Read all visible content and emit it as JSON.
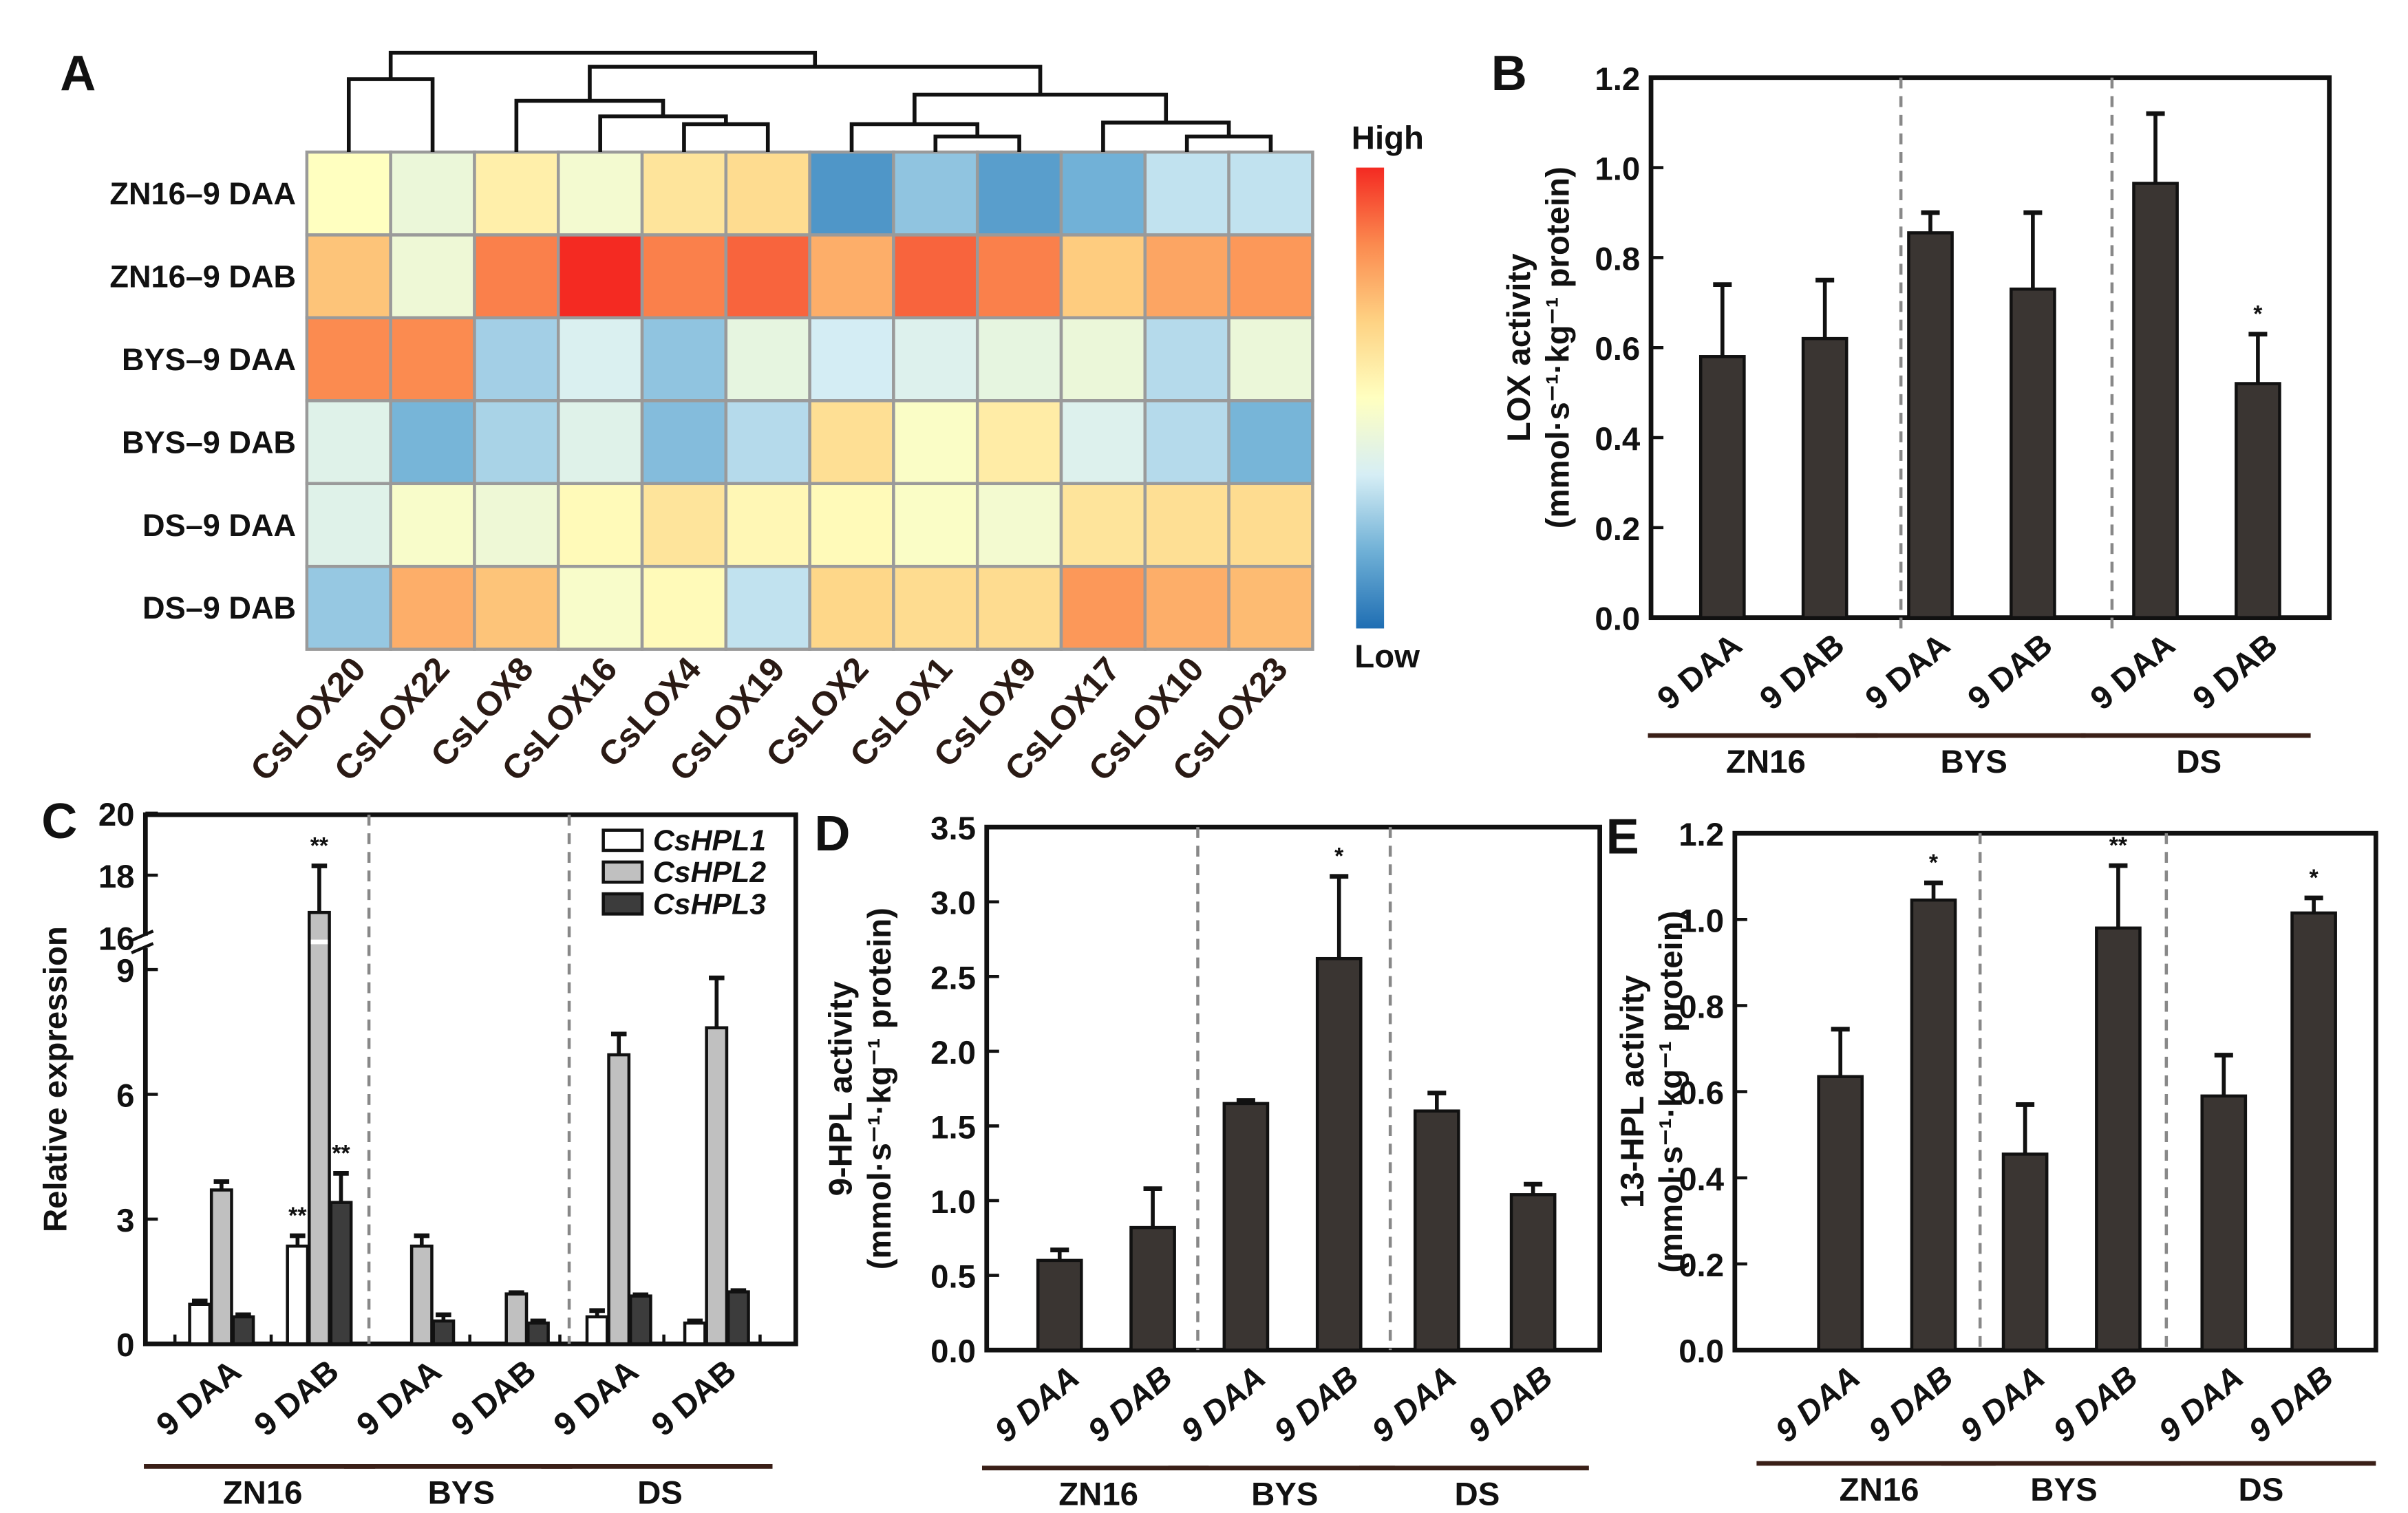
{
  "chart_data": [
    {
      "panel": "A",
      "type": "heatmap",
      "rows": [
        "ZN16–9 DAA",
        "ZN16–9 DAB",
        "BYS–9 DAA",
        "BYS–9 DAB",
        "DS–9 DAA",
        "DS–9 DAB"
      ],
      "columns": [
        "CsLOX20",
        "CsLOX22",
        "CsLOX8",
        "CsLOX16",
        "CsLOX4",
        "CsLOX19",
        "CsLOX2",
        "CsLOX1",
        "CsLOX9",
        "CsLOX17",
        "CsLOX10",
        "CsLOX23"
      ],
      "values": [
        [
          0.5,
          0.42,
          0.56,
          0.45,
          0.6,
          0.63,
          0.1,
          0.22,
          0.12,
          0.17,
          0.3,
          0.3
        ],
        [
          0.7,
          0.43,
          0.85,
          1.0,
          0.85,
          0.9,
          0.75,
          0.9,
          0.85,
          0.68,
          0.77,
          0.8
        ],
        [
          0.83,
          0.83,
          0.25,
          0.35,
          0.22,
          0.4,
          0.33,
          0.36,
          0.4,
          0.42,
          0.28,
          0.42
        ],
        [
          0.37,
          0.18,
          0.26,
          0.37,
          0.2,
          0.28,
          0.62,
          0.48,
          0.57,
          0.36,
          0.28,
          0.18
        ],
        [
          0.37,
          0.47,
          0.43,
          0.52,
          0.6,
          0.53,
          0.52,
          0.48,
          0.45,
          0.6,
          0.62,
          0.63
        ],
        [
          0.23,
          0.75,
          0.7,
          0.47,
          0.52,
          0.3,
          0.65,
          0.63,
          0.63,
          0.8,
          0.75,
          0.72
        ]
      ],
      "value_range": [
        0,
        1
      ],
      "colorscale": [
        "#1f6eb3",
        "#6fb0d6",
        "#d6eef5",
        "#ffffc0",
        "#fed283",
        "#fb8a4f",
        "#f42a22"
      ],
      "legend": {
        "high": "High",
        "low": "Low"
      },
      "column_dendrogram": true
    },
    {
      "panel": "B",
      "type": "bar",
      "categories": [
        "9 DAA",
        "9 DAB",
        "9 DAA",
        "9 DAB",
        "9 DAA",
        "9 DAB"
      ],
      "groups": [
        "ZN16",
        "BYS",
        "DS"
      ],
      "values": [
        0.58,
        0.62,
        0.855,
        0.73,
        0.965,
        0.52
      ],
      "errors": [
        0.16,
        0.13,
        0.045,
        0.17,
        0.155,
        0.11
      ],
      "significance": [
        "",
        "",
        "",
        "",
        "",
        "*"
      ],
      "ylabel": "LOX activity",
      "ylabel_units": "(mmol·s⁻¹·kg⁻¹ protein)",
      "ylim": [
        0,
        1.2
      ],
      "yticks": [
        "0.0",
        "0.2",
        "0.4",
        "0.6",
        "0.8",
        "1.0",
        "1.2"
      ]
    },
    {
      "panel": "C",
      "type": "bar",
      "categories": [
        "9 DAA",
        "9 DAB",
        "9 DAA",
        "9 DAB",
        "9 DAA",
        "9 DAB"
      ],
      "groups": [
        "ZN16",
        "BYS",
        "DS"
      ],
      "series": [
        {
          "name": "CsHPL1",
          "color": "#ffffff",
          "values": [
            0.95,
            2.35,
            0,
            0,
            0.65,
            0.5
          ],
          "errors": [
            0.08,
            0.25,
            0,
            0,
            0.15,
            0.05
          ],
          "significance": [
            "",
            "**",
            "",
            "",
            "",
            ""
          ]
        },
        {
          "name": "CsHPL2",
          "color": "#c0c0c0",
          "values": [
            3.7,
            16.8,
            2.35,
            1.2,
            6.95,
            7.6
          ],
          "errors": [
            0.2,
            1.5,
            0.25,
            0.03,
            0.5,
            1.2
          ],
          "significance": [
            "",
            "**",
            "",
            "",
            "",
            ""
          ]
        },
        {
          "name": "CsHPL3",
          "color": "#3c3c3c",
          "values": [
            0.65,
            3.4,
            0.55,
            0.5,
            1.15,
            1.25
          ],
          "errors": [
            0.05,
            0.7,
            0.15,
            0.05,
            0.03,
            0.03
          ],
          "significance": [
            "",
            "**",
            "",
            "",
            "",
            ""
          ]
        }
      ],
      "ylabel": "Relative expression",
      "ylim": [
        0,
        20
      ],
      "axis_break": [
        9,
        16
      ],
      "yticks": [
        "0",
        "3",
        "6",
        "9",
        "16",
        "18",
        "20"
      ],
      "legend_position": "top-right"
    },
    {
      "panel": "D",
      "type": "bar",
      "categories": [
        "9 DAA",
        "9 DAB",
        "9 DAA",
        "9 DAB",
        "9 DAA",
        "9 DAB"
      ],
      "groups": [
        "ZN16",
        "BYS",
        "DS"
      ],
      "values": [
        0.6,
        0.82,
        1.65,
        2.62,
        1.6,
        1.04
      ],
      "errors": [
        0.07,
        0.26,
        0.02,
        0.55,
        0.12,
        0.07
      ],
      "significance": [
        "",
        "",
        "",
        "*",
        "",
        ""
      ],
      "ylabel": "9-HPL activity",
      "ylabel_units": "(mmol·s⁻¹·kg⁻¹ protein)",
      "ylim": [
        0,
        3.5
      ],
      "yticks": [
        "0.0",
        "0.5",
        "1.0",
        "1.5",
        "2.0",
        "2.5",
        "3.0",
        "3.5"
      ]
    },
    {
      "panel": "E",
      "type": "bar",
      "categories": [
        "9 DAA",
        "9 DAB",
        "9 DAA",
        "9 DAB",
        "9 DAA",
        "9 DAB"
      ],
      "groups": [
        "ZN16",
        "BYS",
        "DS"
      ],
      "values": [
        0.635,
        1.045,
        0.455,
        0.98,
        0.59,
        1.015
      ],
      "errors": [
        0.11,
        0.04,
        0.115,
        0.145,
        0.095,
        0.035
      ],
      "significance": [
        "",
        "*",
        "",
        "**",
        "",
        "*"
      ],
      "ylabel": "13-HPL activity",
      "ylabel_units": "(mmol·s⁻¹·kg⁻¹ protein)",
      "ylim": [
        0,
        1.2
      ],
      "yticks": [
        "0.0",
        "0.2",
        "0.4",
        "0.6",
        "0.8",
        "1.0",
        "1.2"
      ]
    }
  ]
}
